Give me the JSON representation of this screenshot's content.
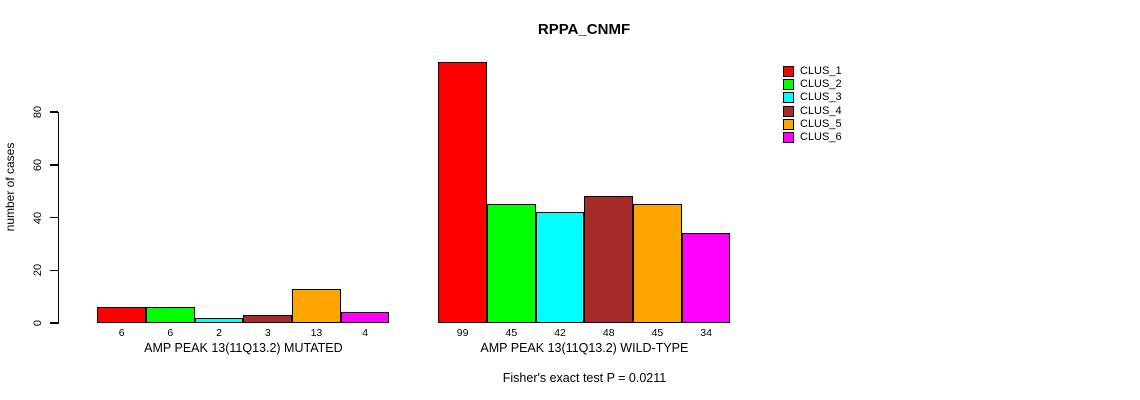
{
  "chart_data": {
    "type": "bar",
    "title": "RPPA_CNMF",
    "ylabel": "number of cases",
    "xlabel": "",
    "yticks": [
      0,
      20,
      40,
      60,
      80
    ],
    "ylim": [
      0,
      100
    ],
    "grid": false,
    "legend_position": "top-right",
    "bar_value_labels": true,
    "categories": [
      "AMP PEAK 13(11Q13.2) MUTATED",
      "AMP PEAK 13(11Q13.2) WILD-TYPE"
    ],
    "series": [
      {
        "name": "CLUS_1",
        "color": "#FF0000",
        "values": [
          6,
          99
        ]
      },
      {
        "name": "CLUS_2",
        "color": "#00FF00",
        "values": [
          6,
          45
        ]
      },
      {
        "name": "CLUS_3",
        "color": "#00FFFF",
        "values": [
          2,
          42
        ]
      },
      {
        "name": "CLUS_4",
        "color": "#A52A2A",
        "values": [
          3,
          48
        ]
      },
      {
        "name": "CLUS_5",
        "color": "#FFA500",
        "values": [
          13,
          45
        ]
      },
      {
        "name": "CLUS_6",
        "color": "#FF00FF",
        "values": [
          4,
          34
        ]
      }
    ],
    "footnote": "Fisher's exact test P = 0.0211",
    "text_color": "#000000",
    "background_color": "#FFFFFF"
  }
}
